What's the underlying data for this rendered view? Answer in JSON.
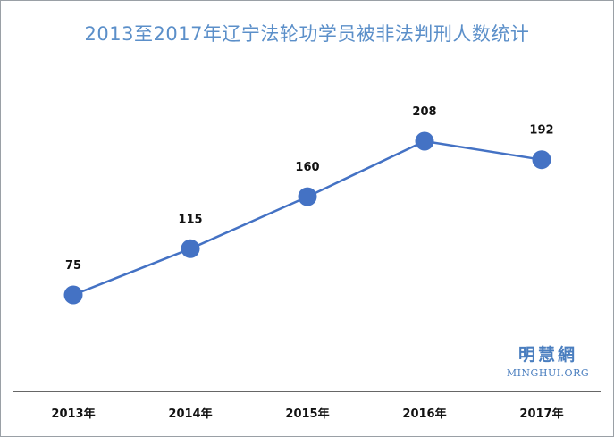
{
  "chart_data": {
    "type": "line",
    "title": "2013至2017年辽宁法轮功学员被非法判刑人数统计",
    "categories": [
      "2013年",
      "2014年",
      "2015年",
      "2016年",
      "2017年"
    ],
    "series": [
      {
        "values": [
          75,
          115,
          160,
          208,
          192
        ]
      }
    ],
    "data_labels": [
      "75",
      "115",
      "160",
      "208",
      "192"
    ],
    "ylim": [
      0,
      250
    ],
    "grid": false,
    "legend": "none",
    "colors": {
      "line": "#4472c4",
      "marker": "#4472c4",
      "title": "#5b8fc9"
    }
  },
  "watermark": {
    "text_cn": "明慧網",
    "text_en": "MINGHUI.ORG"
  }
}
